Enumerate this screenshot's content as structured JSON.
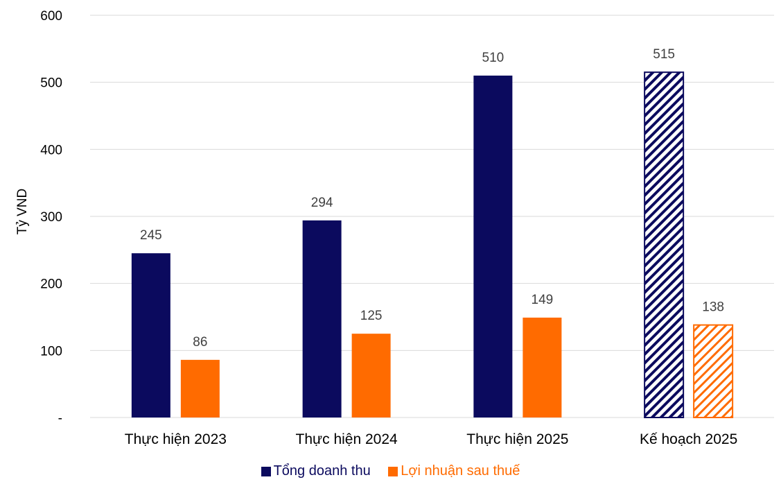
{
  "chart_data": {
    "type": "bar",
    "ylabel": "Tỷ VND",
    "ylim": [
      0,
      600
    ],
    "yticks": [
      0,
      100,
      200,
      300,
      400,
      500,
      600
    ],
    "ytick_labels": [
      "-",
      "100",
      "200",
      "300",
      "400",
      "500",
      "600"
    ],
    "categories": [
      "Thực hiện 2023",
      "Thực hiện 2024",
      "Thực hiện 2025",
      "Kế hoạch 2025"
    ],
    "series": [
      {
        "name": "Tổng doanh thu",
        "values": [
          245,
          294,
          510,
          515
        ],
        "color": "#0b0a5e"
      },
      {
        "name": "Lợi nhuận sau thuế",
        "values": [
          86,
          125,
          149,
          138
        ],
        "color": "#ff6b00"
      }
    ],
    "hatched_categories": [
      "Kế hoạch 2025"
    ],
    "grid": true,
    "legend_position": "bottom"
  }
}
